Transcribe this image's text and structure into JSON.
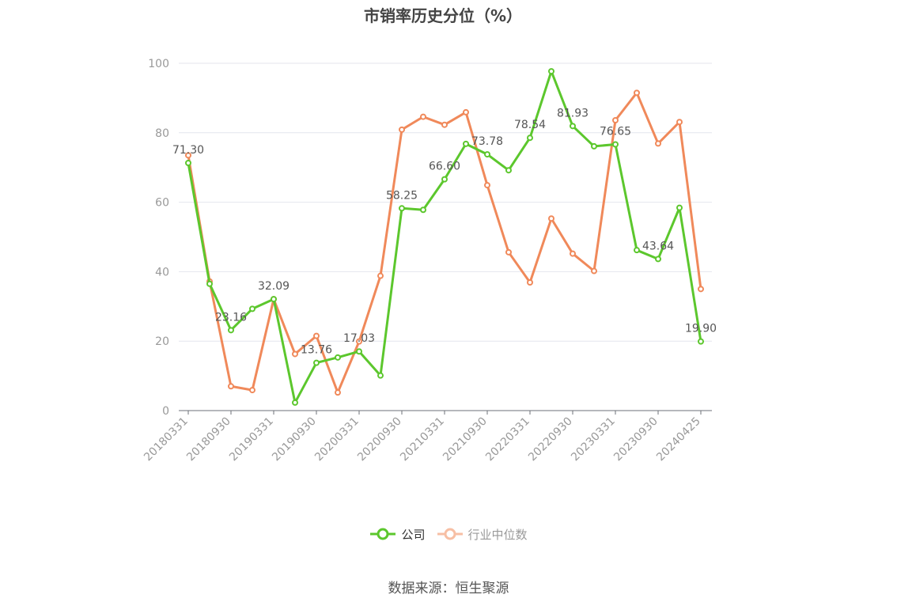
{
  "chart_data": {
    "type": "line",
    "title": "市销率历史分位（%）",
    "x": [
      "20180331",
      "20180630",
      "20180930",
      "20181231",
      "20190331",
      "20190630",
      "20190930",
      "20191231",
      "20200331",
      "20200630",
      "20200930",
      "20201231",
      "20210331",
      "20210630",
      "20210930",
      "20211231",
      "20220331",
      "20220630",
      "20220930",
      "20221231",
      "20230331",
      "20230630",
      "20230930",
      "20231231",
      "20240425"
    ],
    "x_tick_labels": [
      "20180331",
      "20180930",
      "20190331",
      "20190930",
      "20200331",
      "20200930",
      "20210331",
      "20210930",
      "20220331",
      "20220930",
      "20230331",
      "20230930",
      "20240425"
    ],
    "ylim": [
      0,
      100
    ],
    "y_ticks": [
      0,
      20,
      40,
      60,
      80,
      100
    ],
    "grid": true,
    "legend_position": "bottom",
    "series": [
      {
        "name": "公司",
        "color": "#5cc72d",
        "values": [
          71.3,
          36.5,
          23.16,
          29.3,
          32.09,
          2.3,
          13.76,
          15.3,
          17.03,
          10.1,
          58.25,
          57.8,
          66.6,
          76.8,
          73.78,
          69.2,
          78.54,
          97.7,
          81.93,
          76.1,
          76.65,
          46.2,
          43.64,
          58.4,
          19.9
        ],
        "labels": {
          "0": "71.30",
          "2": "23.16",
          "4": "32.09",
          "6": "13.76",
          "8": "17.03",
          "10": "58.25",
          "12": "66.60",
          "14": "73.78",
          "16": "78.54",
          "18": "81.93",
          "20": "76.65",
          "22": "43.64",
          "24": "19.90"
        }
      },
      {
        "name": "行业中位数",
        "color": "#f0895a",
        "values": [
          73.5,
          37.2,
          7.0,
          5.9,
          32.1,
          16.3,
          21.5,
          5.2,
          19.9,
          38.8,
          80.9,
          84.6,
          82.3,
          85.9,
          64.9,
          45.6,
          36.9,
          55.3,
          45.2,
          40.2,
          83.6,
          91.5,
          76.9,
          83.1,
          35.0
        ]
      }
    ]
  },
  "legend": {
    "company_label": "公司",
    "industry_label": "行业中位数"
  },
  "source": "数据来源：恒生聚源"
}
